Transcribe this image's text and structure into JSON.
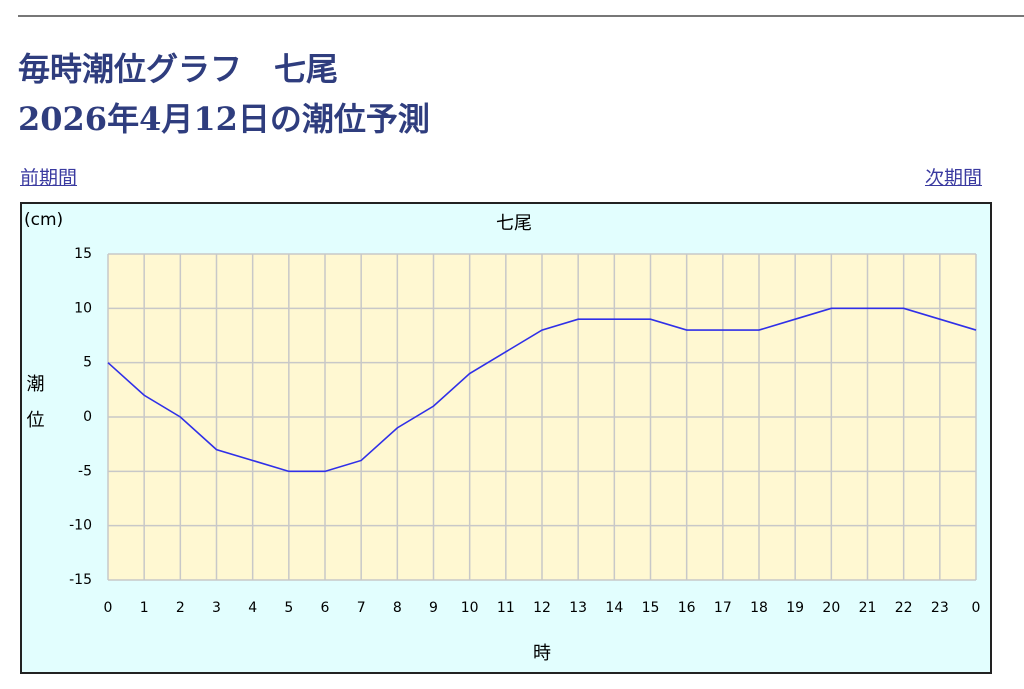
{
  "header": {
    "title": "毎時潮位グラフ　七尾",
    "subtitle": "2026年4月12日の潮位予測"
  },
  "nav": {
    "prev": "前期間",
    "next": "次期間"
  },
  "chart_data": {
    "type": "line",
    "title": "七尾",
    "y_unit": "(cm)",
    "y_label": "潮位",
    "x_label": "時",
    "categories": [
      "0",
      "1",
      "2",
      "3",
      "4",
      "5",
      "6",
      "7",
      "8",
      "9",
      "10",
      "11",
      "12",
      "13",
      "14",
      "15",
      "16",
      "17",
      "18",
      "19",
      "20",
      "21",
      "22",
      "23",
      "0"
    ],
    "series": [
      {
        "name": "潮位",
        "color": "#3030e8",
        "values": [
          5,
          2,
          0,
          -3,
          -4,
          -5,
          -5,
          -4,
          -1,
          1,
          4,
          6,
          8,
          9,
          9,
          9,
          8,
          8,
          8,
          9,
          10,
          10,
          10,
          9,
          8
        ]
      }
    ],
    "ylim": [
      -15,
      15
    ],
    "yticks": [
      -15,
      -10,
      -5,
      0,
      5,
      10,
      15
    ],
    "grid": true,
    "plot_background": "#fff8d2",
    "background": "#e2fefe"
  }
}
